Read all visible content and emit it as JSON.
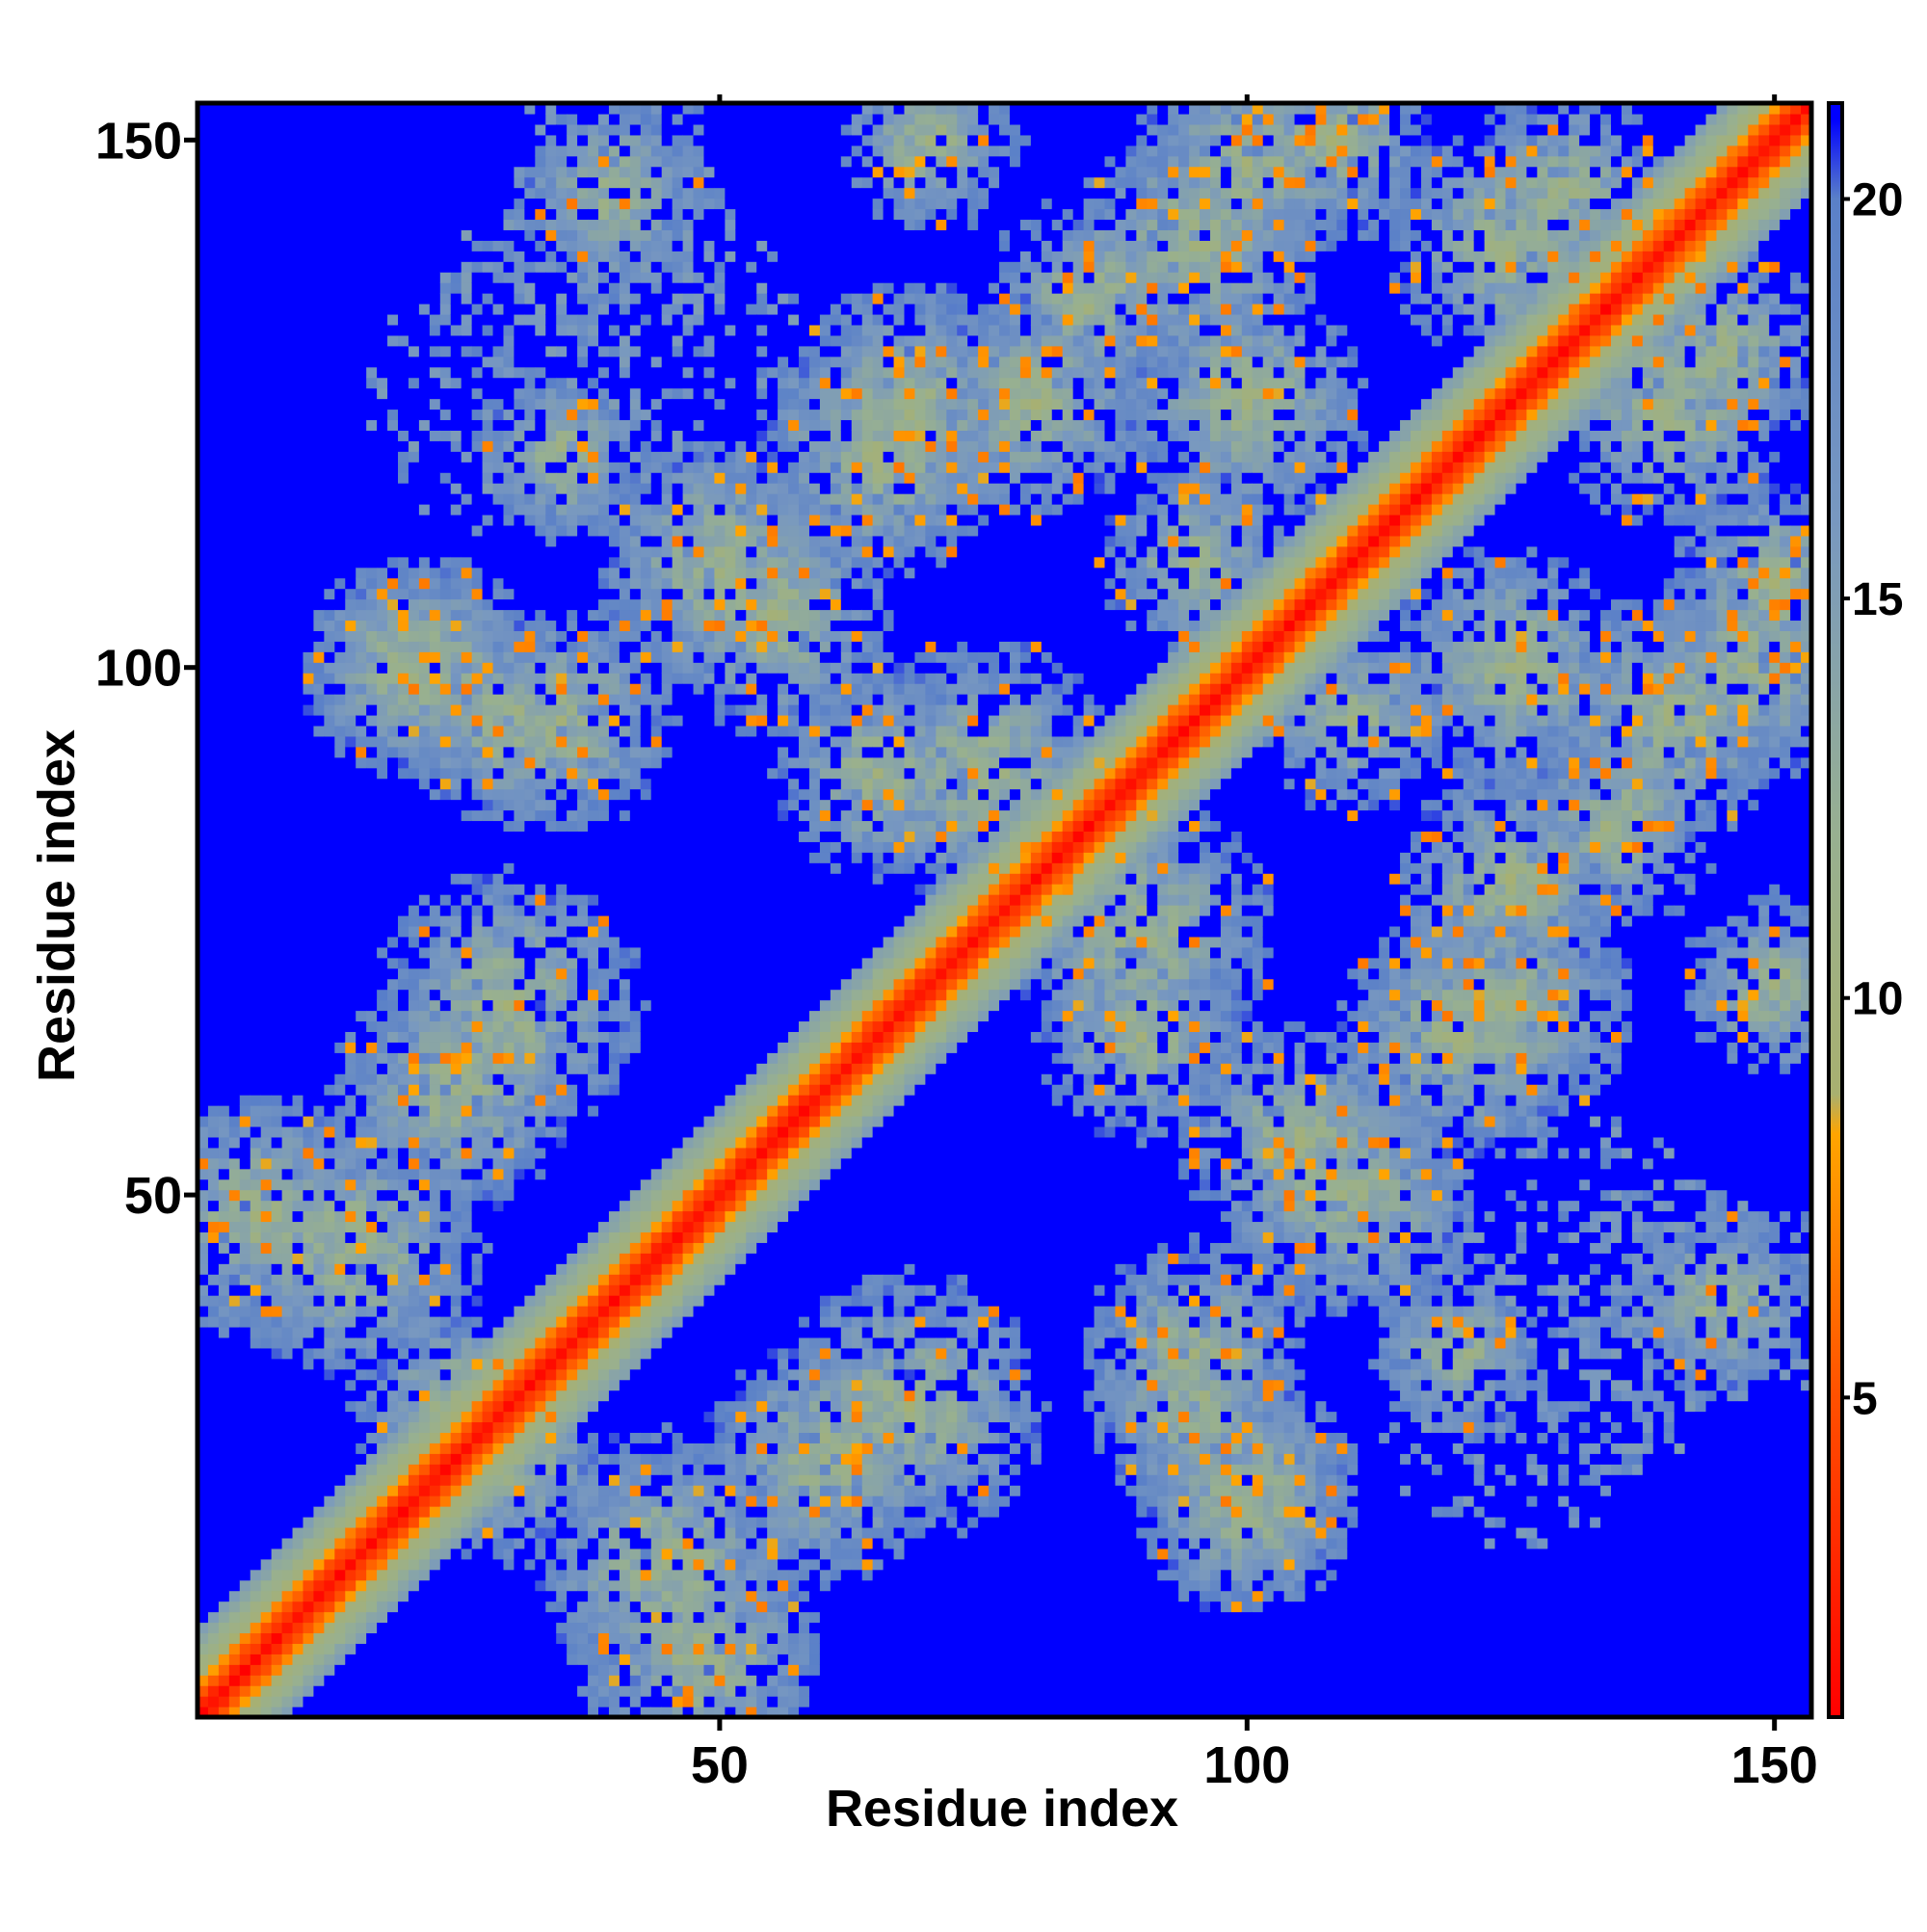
{
  "chart_data": {
    "type": "heatmap",
    "title": "",
    "xlabel": "Residue index",
    "ylabel": "Residue index",
    "n_residues": 153,
    "xlim": [
      1,
      153
    ],
    "ylim": [
      1,
      153
    ],
    "x_ticks": [
      50,
      100,
      150
    ],
    "y_ticks": [
      50,
      100,
      150
    ],
    "x_tick_labels": [
      "50",
      "100",
      "150"
    ],
    "y_tick_labels": [
      "50",
      "100",
      "150"
    ],
    "colorbar": {
      "range": [
        1,
        21.2
      ],
      "ticks": [
        5,
        10,
        15,
        20
      ],
      "tick_labels": [
        "5",
        "10",
        "15",
        "20"
      ],
      "stops": [
        {
          "value": 1,
          "color": "#ff0000"
        },
        {
          "value": 5,
          "color": "#ff5000"
        },
        {
          "value": 8.3,
          "color": "#ffa500"
        },
        {
          "value": 8.8,
          "color": "#a8b070"
        },
        {
          "value": 12,
          "color": "#98b090"
        },
        {
          "value": 16,
          "color": "#7898c0"
        },
        {
          "value": 20,
          "color": "#5a80c8"
        },
        {
          "value": 21,
          "color": "#0000ff"
        }
      ]
    },
    "diagonal_band": {
      "red_max_offset": 2,
      "orange_max_offset": 3,
      "green_max_offset": 8
    },
    "distal_clusters": [
      {
        "x": 6,
        "y": 48,
        "radius": 12
      },
      {
        "x": 30,
        "y": 68,
        "radius": 13
      },
      {
        "x": 22,
        "y": 100,
        "radius": 11
      },
      {
        "x": 45,
        "y": 15,
        "radius": 13
      },
      {
        "x": 60,
        "y": 25,
        "radius": 12
      },
      {
        "x": 30,
        "y": 25,
        "radius": 10
      },
      {
        "x": 50,
        "y": 110,
        "radius": 12
      },
      {
        "x": 30,
        "y": 95,
        "radius": 10
      },
      {
        "x": 65,
        "y": 90,
        "radius": 10
      },
      {
        "x": 68,
        "y": 125,
        "radius": 12
      },
      {
        "x": 80,
        "y": 125,
        "radius": 11
      },
      {
        "x": 95,
        "y": 140,
        "radius": 12
      },
      {
        "x": 108,
        "y": 150,
        "radius": 10
      },
      {
        "x": 90,
        "y": 75,
        "radius": 13
      },
      {
        "x": 95,
        "y": 35,
        "radius": 11
      },
      {
        "x": 100,
        "y": 20,
        "radius": 10
      },
      {
        "x": 105,
        "y": 55,
        "radius": 12
      },
      {
        "x": 120,
        "y": 65,
        "radius": 12
      },
      {
        "x": 125,
        "y": 100,
        "radius": 12
      },
      {
        "x": 135,
        "y": 85,
        "radius": 10
      },
      {
        "x": 140,
        "y": 125,
        "radius": 12
      },
      {
        "x": 148,
        "y": 100,
        "radius": 11
      },
      {
        "x": 150,
        "y": 70,
        "radius": 9
      },
      {
        "x": 130,
        "y": 145,
        "radius": 10
      },
      {
        "x": 110,
        "y": 95,
        "radius": 9
      },
      {
        "x": 145,
        "y": 40,
        "radius": 9
      },
      {
        "x": 120,
        "y": 35,
        "radius": 8
      }
    ],
    "sparse_patches": [
      {
        "x": 40,
        "y": 130,
        "radius": 18
      },
      {
        "x": 40,
        "y": 148,
        "radius": 10
      },
      {
        "x": 125,
        "y": 30,
        "radius": 14
      },
      {
        "x": 140,
        "y": 40,
        "radius": 12
      }
    ]
  }
}
